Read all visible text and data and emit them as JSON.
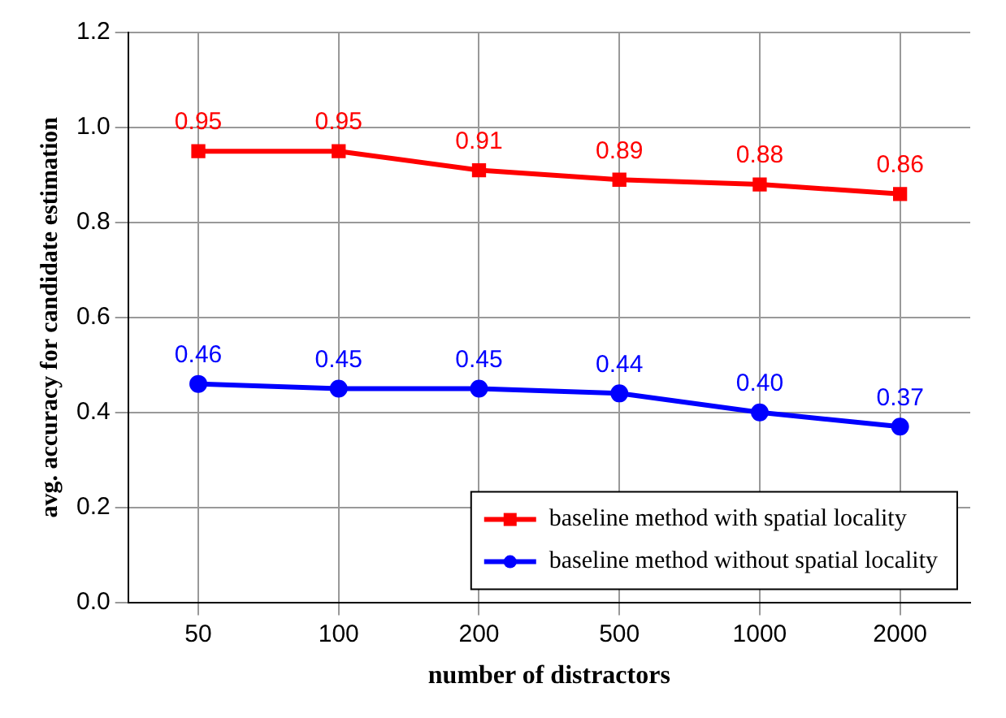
{
  "chart_data": {
    "type": "line",
    "xlabel": "number of distractors",
    "ylabel": "avg. accuracy for candidate estimation",
    "categories": [
      "50",
      "100",
      "200",
      "500",
      "1000",
      "2000"
    ],
    "series": [
      {
        "name": "baseline method with spatial locality",
        "color": "#ff0000",
        "marker": "square",
        "values": [
          0.95,
          0.95,
          0.91,
          0.89,
          0.88,
          0.86
        ],
        "value_labels": [
          "0.95",
          "0.95",
          "0.91",
          "0.89",
          "0.88",
          "0.86"
        ]
      },
      {
        "name": "baseline method without spatial locality",
        "color": "#0000ff",
        "marker": "circle",
        "values": [
          0.46,
          0.45,
          0.45,
          0.44,
          0.4,
          0.37
        ],
        "value_labels": [
          "0.46",
          "0.45",
          "0.45",
          "0.44",
          "0.40",
          "0.37"
        ]
      }
    ],
    "ylim": [
      0,
      1.2
    ],
    "yticks": [
      {
        "value": 0,
        "label": "0.0"
      },
      0.2,
      0.4,
      0.6,
      0.8,
      {
        "value": 1,
        "label": "1.0"
      },
      1.2
    ],
    "grid": true,
    "legend": "bottom right",
    "line_style": "solid"
  }
}
